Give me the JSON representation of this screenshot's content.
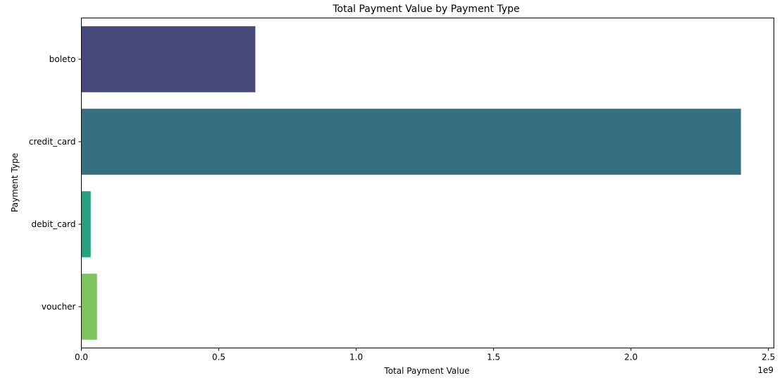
{
  "chart_data": {
    "type": "bar",
    "orientation": "horizontal",
    "title": "Total Payment Value by Payment Type",
    "xlabel": "Total Payment Value",
    "ylabel": "Payment Type",
    "x_offset_label": "1e9",
    "xlim": [
      0,
      2.52
    ],
    "x_ticks": [
      {
        "value": 0.0,
        "label": "0.0"
      },
      {
        "value": 0.5,
        "label": "0.5"
      },
      {
        "value": 1.0,
        "label": "1.0"
      },
      {
        "value": 1.5,
        "label": "1.5"
      },
      {
        "value": 2.0,
        "label": "2.0"
      },
      {
        "value": 2.5,
        "label": "2.5"
      }
    ],
    "categories": [
      "boleto",
      "credit_card",
      "debit_card",
      "voucher"
    ],
    "values": [
      0.633,
      2.4,
      0.034,
      0.057
    ],
    "values_unit_multiplier": 1000000000,
    "colors": [
      "#48497b",
      "#367080",
      "#2aa07f",
      "#7fc55f"
    ],
    "grid": false,
    "legend": "none"
  }
}
